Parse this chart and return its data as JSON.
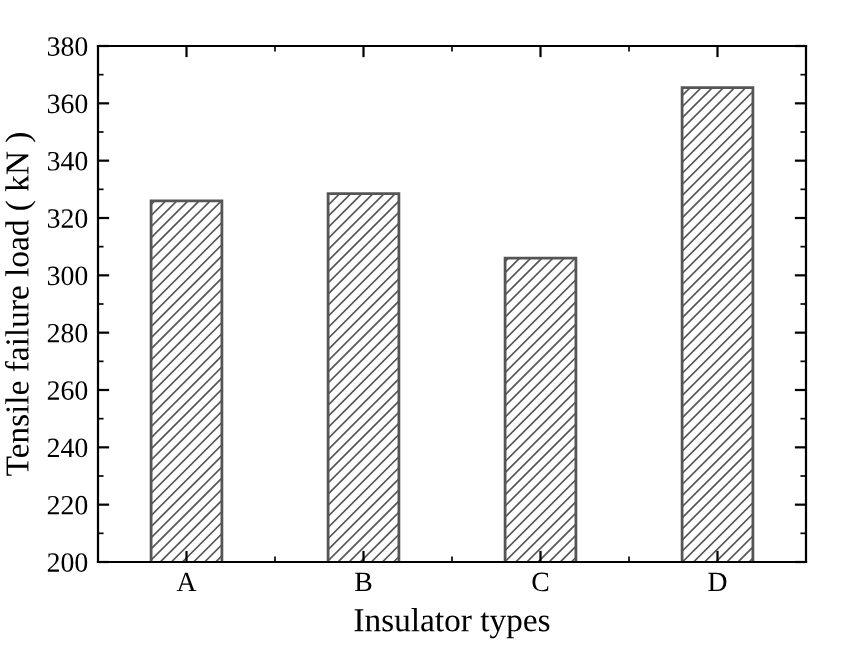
{
  "chart_data": {
    "type": "bar",
    "xlabel": "Insulator types",
    "ylabel": "Tensile failure load ( kN )",
    "categories": [
      "A",
      "B",
      "C",
      "D"
    ],
    "values": [
      326,
      328.5,
      306,
      365.5
    ],
    "color": "#555555",
    "ylim": [
      200,
      380
    ],
    "yticks": [
      200,
      220,
      240,
      260,
      280,
      300,
      320,
      340,
      360,
      380
    ],
    "grid": false,
    "legend": false
  }
}
